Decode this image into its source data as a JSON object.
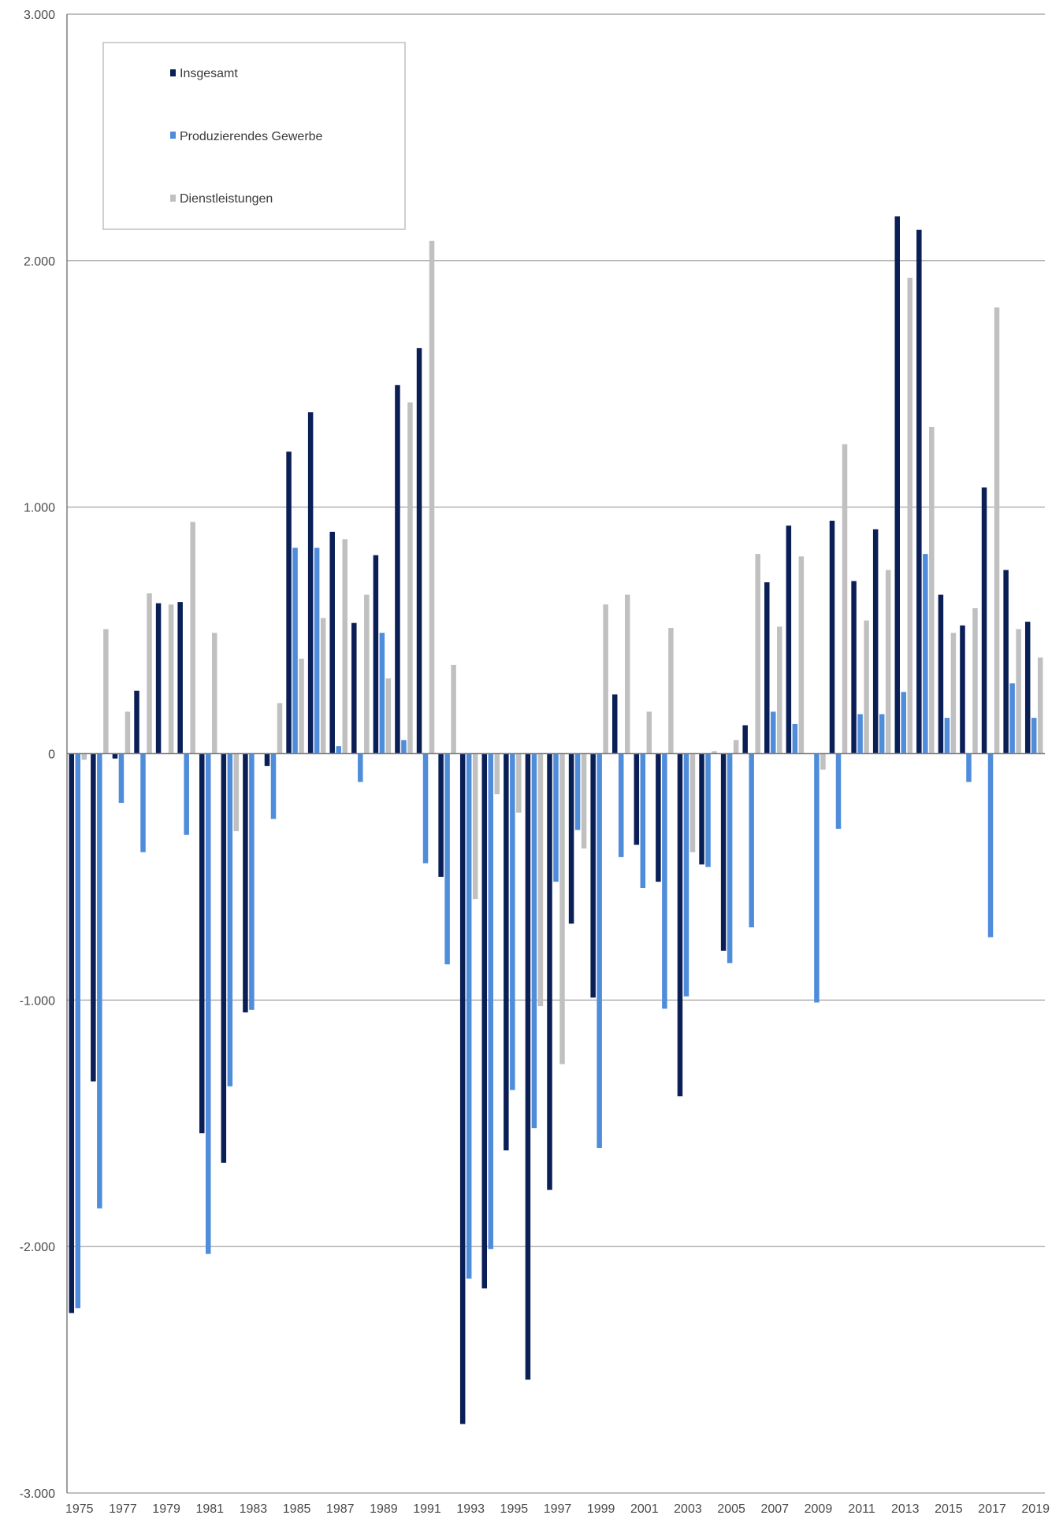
{
  "chart_data": {
    "type": "bar",
    "title": "",
    "xlabel": "",
    "ylabel": "",
    "ylim": [
      -3000,
      3000
    ],
    "yticks": [
      3000,
      2000,
      1000,
      0,
      -1000,
      -2000,
      -3000
    ],
    "ytick_labels": [
      "3.000",
      "2.000",
      "1.000",
      "0",
      "-1.000",
      "-2.000",
      "-3.000"
    ],
    "categories": [
      "1975",
      "1976",
      "1977",
      "1978",
      "1979",
      "1980",
      "1981",
      "1982",
      "1983",
      "1984",
      "1985",
      "1986",
      "1987",
      "1988",
      "1989",
      "1990",
      "1991",
      "1992",
      "1993",
      "1994",
      "1995",
      "1996",
      "1997",
      "1998",
      "1999",
      "2000",
      "2001",
      "2002",
      "2003",
      "2004",
      "2005",
      "2006",
      "2007",
      "2008",
      "2009",
      "2010",
      "2011",
      "2012",
      "2013",
      "2014",
      "2015",
      "2016",
      "2017",
      "2018",
      "2019"
    ],
    "xtick_labels": [
      "1975",
      "1977",
      "1979",
      "1981",
      "1983",
      "1985",
      "1987",
      "1989",
      "1991",
      "1993",
      "1995",
      "1997",
      "1999",
      "2001",
      "2003",
      "2005",
      "2007",
      "2009",
      "2011",
      "2013",
      "2015",
      "2017",
      "2019"
    ],
    "grid": true,
    "legend_position": "top-left",
    "series": [
      {
        "name": "Insgesamt",
        "color": "#0b1f57",
        "values": [
          -2270,
          -1330,
          -20,
          255,
          610,
          615,
          -1540,
          -1660,
          -1050,
          -50,
          1225,
          1385,
          900,
          530,
          805,
          1495,
          1645,
          -500,
          -2720,
          -2170,
          -1610,
          -2540,
          -1770,
          -690,
          -990,
          240,
          -370,
          -520,
          -1390,
          -450,
          -800,
          115,
          695,
          925,
          0,
          945,
          700,
          910,
          2180,
          2125,
          645,
          520,
          1080,
          745,
          535
        ]
      },
      {
        "name": "Produzierendes Gewerbe",
        "color": "#4f8ddb",
        "values": [
          -2250,
          -1845,
          -200,
          -400,
          0,
          -330,
          -2030,
          -1350,
          -1040,
          -265,
          835,
          835,
          30,
          -115,
          490,
          55,
          -445,
          -855,
          -2130,
          -2010,
          -1365,
          -1520,
          -520,
          -310,
          -1600,
          -420,
          -545,
          -1035,
          -985,
          -460,
          -850,
          -705,
          170,
          120,
          -1010,
          -305,
          160,
          160,
          250,
          810,
          145,
          -115,
          -745,
          285,
          145
        ]
      },
      {
        "name": "Dienstleistungen",
        "color": "#c0c0c0",
        "values": [
          -25,
          505,
          170,
          650,
          605,
          940,
          490,
          -315,
          0,
          205,
          385,
          550,
          870,
          645,
          305,
          1425,
          2080,
          360,
          -590,
          -165,
          -240,
          -1025,
          -1260,
          -385,
          605,
          645,
          170,
          510,
          -400,
          10,
          55,
          810,
          515,
          800,
          -65,
          1255,
          540,
          745,
          1930,
          1325,
          490,
          590,
          1810,
          505,
          390
        ]
      }
    ]
  }
}
